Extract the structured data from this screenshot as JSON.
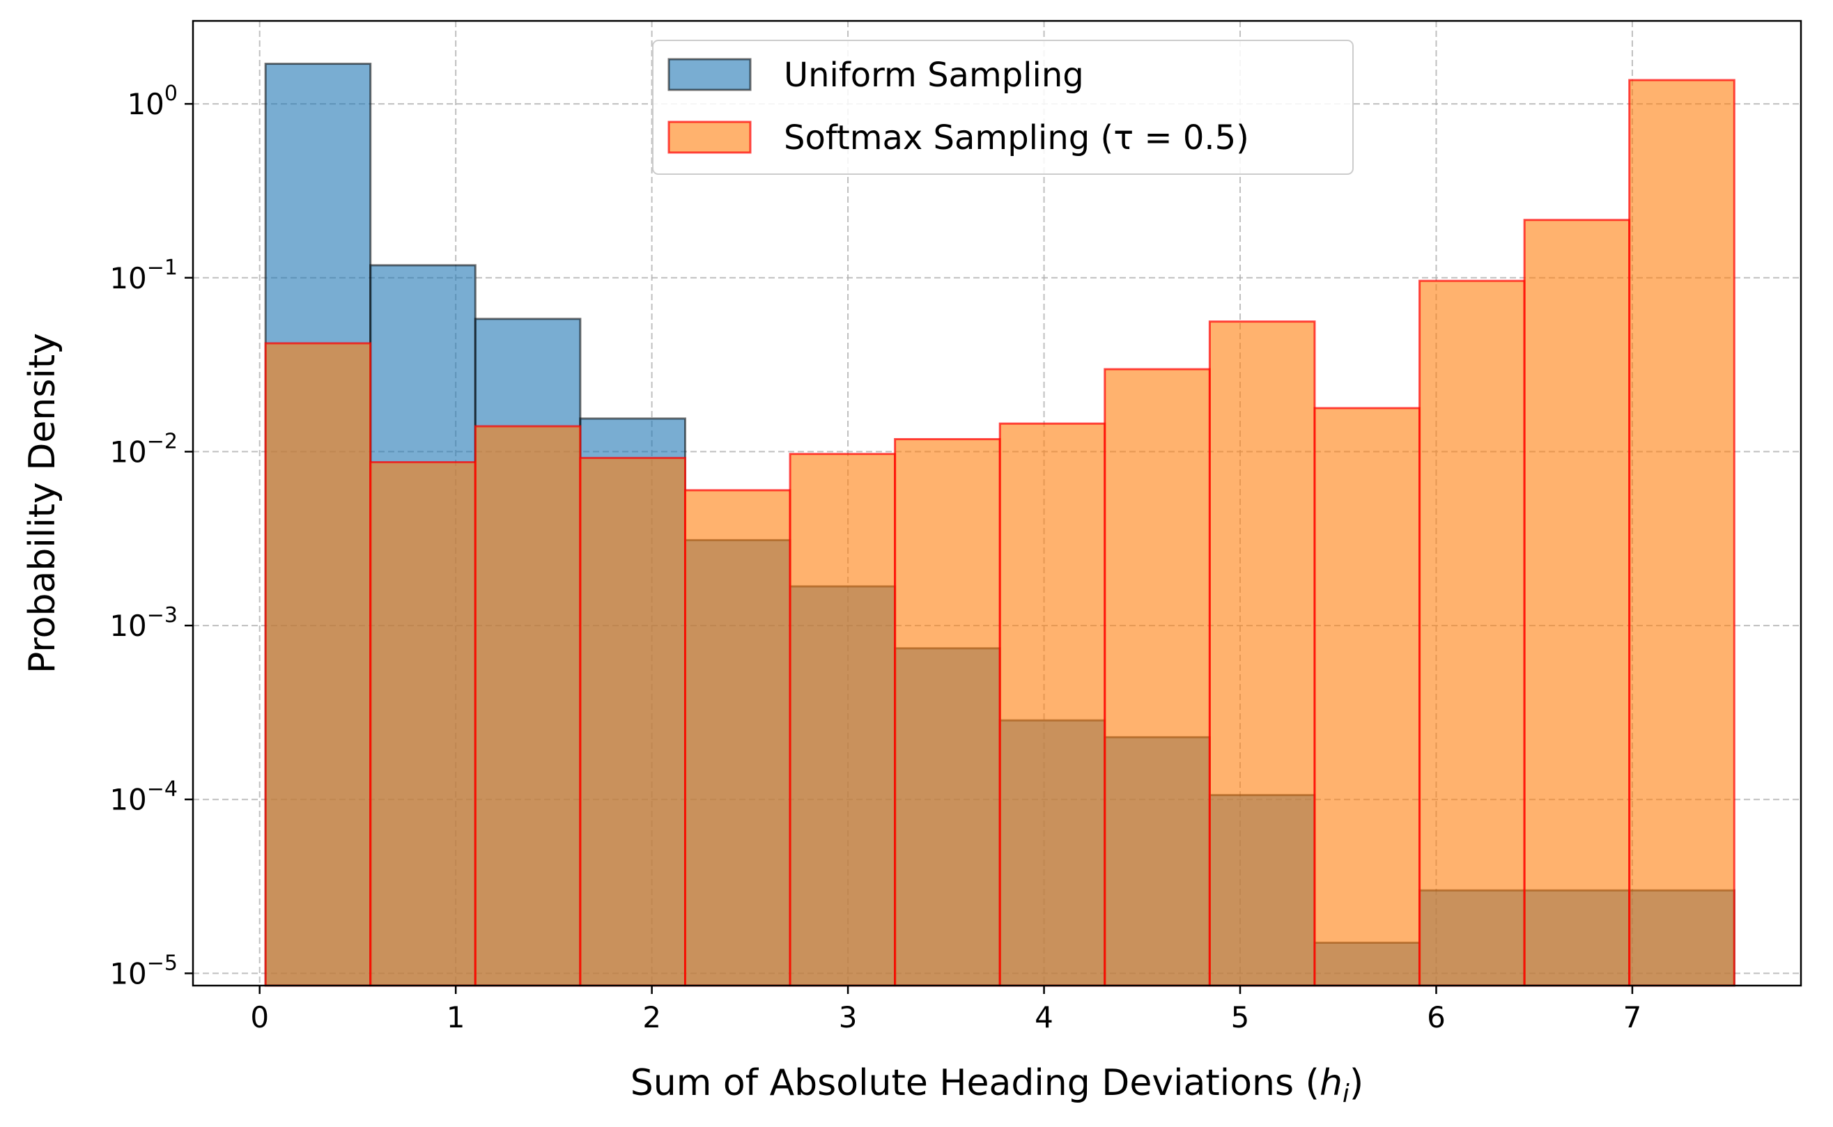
{
  "chart_data": {
    "type": "bar",
    "subtype": "histogram",
    "title": "",
    "xlabel": "Sum of Absolute Heading Deviations",
    "xlabel_symbol": "h",
    "xlabel_subscript": "i",
    "ylabel": "Probability Density",
    "yscale": "log",
    "xlim": [
      -0.34,
      7.86
    ],
    "ylim": [
      8.5e-06,
      3.0
    ],
    "grid": true,
    "legend_position": "top-center",
    "bin_edges": [
      0.03,
      0.565,
      1.1,
      1.635,
      2.17,
      2.705,
      3.24,
      3.775,
      4.31,
      4.845,
      5.38,
      5.915,
      6.45,
      6.985,
      7.52
    ],
    "x_ticks": [
      "0",
      "1",
      "2",
      "3",
      "4",
      "5",
      "6",
      "7"
    ],
    "x_tick_values": [
      0,
      1,
      2,
      3,
      4,
      5,
      6,
      7
    ],
    "y_ticks": [
      {
        "value": 1e-05,
        "base": "10",
        "exp": "−5"
      },
      {
        "value": 0.0001,
        "base": "10",
        "exp": "−4"
      },
      {
        "value": 0.001,
        "base": "10",
        "exp": "−3"
      },
      {
        "value": 0.01,
        "base": "10",
        "exp": "−2"
      },
      {
        "value": 0.1,
        "base": "10",
        "exp": "−1"
      },
      {
        "value": 1,
        "base": "10",
        "exp": "0"
      }
    ],
    "series": [
      {
        "name": "Uniform Sampling",
        "fill": "#1f77b4",
        "fill_opacity": 0.6,
        "edge": "#000000",
        "edge_opacity": 0.55,
        "values": [
          1.7,
          0.118,
          0.058,
          0.0155,
          0.0031,
          0.00168,
          0.00074,
          0.000285,
          0.000228,
          0.000106,
          1.5e-05,
          3e-05,
          3e-05,
          3e-05
        ]
      },
      {
        "name": "Softmax Sampling",
        "name_suffix": "(τ = 0.5)",
        "fill": "#ff7f0e",
        "fill_opacity": 0.6,
        "edge": "#ff0000",
        "edge_opacity": 0.7,
        "values": [
          0.042,
          0.0087,
          0.014,
          0.0092,
          0.006,
          0.0097,
          0.0118,
          0.0145,
          0.0298,
          0.056,
          0.0178,
          0.096,
          0.215,
          1.37
        ]
      }
    ]
  }
}
